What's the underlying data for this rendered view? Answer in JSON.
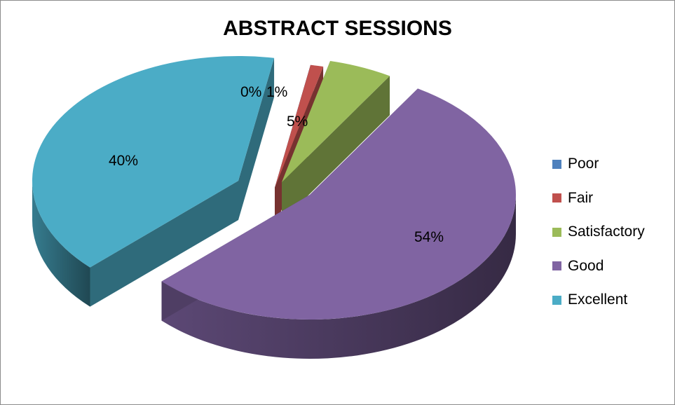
{
  "chart_data": {
    "type": "pie",
    "title": "ABSTRACT SESSIONS",
    "categories": [
      "Poor",
      "Fair",
      "Satisfactory",
      "Good",
      "Excellent"
    ],
    "values": [
      0,
      1,
      5,
      54,
      40
    ],
    "data_labels": [
      "0%",
      "1%",
      "5%",
      "54%",
      "40%"
    ],
    "unit": "%",
    "three_d": true,
    "exploded": true,
    "legend": "right",
    "colors": {
      "Poor": "#4f81bd",
      "Fair": "#c0504d",
      "Satisfactory": "#9bbb59",
      "Good": "#8064a2",
      "Excellent": "#4bacc6"
    }
  }
}
